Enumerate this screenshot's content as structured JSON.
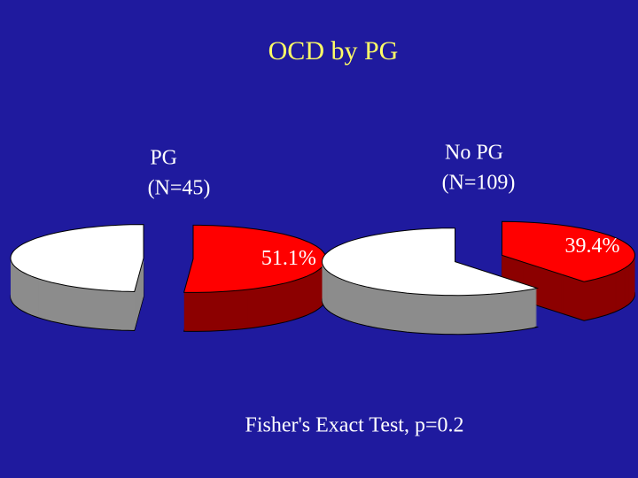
{
  "title": "OCD by PG",
  "chart_data": [
    {
      "type": "pie",
      "title": [
        "PG",
        "(N=45)"
      ],
      "values": [
        51.1,
        48.9
      ],
      "value_labels": [
        "51.1%",
        null
      ],
      "colors": [
        "#ff0000",
        "#ffffff"
      ]
    },
    {
      "type": "pie",
      "title": [
        "No PG",
        "(N=109)"
      ],
      "values": [
        39.4,
        60.6
      ],
      "value_labels": [
        "39.4%",
        null
      ],
      "colors": [
        "#ff0000",
        "#ffffff"
      ]
    }
  ],
  "note": "Fisher's Exact Test, p=0.2"
}
